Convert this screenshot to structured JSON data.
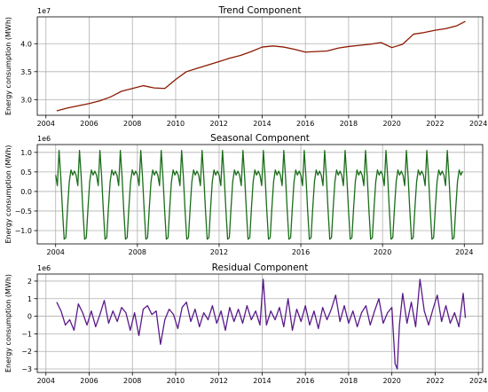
{
  "chart_data": [
    {
      "type": "line",
      "title": "Trend Component",
      "ylabel": "Energy consumption (MWh)",
      "multiplier": "1e7",
      "color": "#8b1a00",
      "xlim": [
        2003.6,
        2024.2
      ],
      "ylim": [
        2.72,
        4.48
      ],
      "xticks": [
        2004,
        2006,
        2008,
        2010,
        2012,
        2014,
        2016,
        2018,
        2020,
        2022,
        2024
      ],
      "xtick_labels": [
        "2004",
        "2006",
        "2008",
        "2010",
        "2012",
        "2014",
        "2016",
        "2018",
        "2020",
        "2022",
        "2024"
      ],
      "yticks": [
        3.0,
        3.5,
        4.0
      ],
      "ytick_labels": [
        "3.0",
        "3.5",
        "4.0"
      ],
      "grid": true,
      "series": [
        {
          "x": [
            2004.5,
            2005.0,
            2005.5,
            2006.0,
            2006.5,
            2007.0,
            2007.5,
            2008.0,
            2008.5,
            2009.0,
            2009.5,
            2010.0,
            2010.5,
            2011.0,
            2011.5,
            2012.0,
            2012.5,
            2013.0,
            2013.5,
            2014.0,
            2014.5,
            2015.0,
            2015.5,
            2016.0,
            2016.5,
            2017.0,
            2017.5,
            2018.0,
            2018.5,
            2019.0,
            2019.5,
            2020.0,
            2020.5,
            2021.0,
            2021.5,
            2022.0,
            2022.5,
            2023.0,
            2023.4
          ],
          "y": [
            2.8,
            2.85,
            2.89,
            2.93,
            2.98,
            3.05,
            3.15,
            3.2,
            3.25,
            3.21,
            3.2,
            3.36,
            3.5,
            3.56,
            3.62,
            3.68,
            3.74,
            3.79,
            3.86,
            3.94,
            3.96,
            3.94,
            3.9,
            3.85,
            3.86,
            3.87,
            3.92,
            3.95,
            3.97,
            3.99,
            4.02,
            3.93,
            3.99,
            4.17,
            4.2,
            4.24,
            4.27,
            4.32,
            4.4
          ]
        }
      ]
    },
    {
      "type": "line",
      "title": "Seasonal Component",
      "ylabel": "Energy consumption (MWh)",
      "multiplier": "1e6",
      "color": "#1a6e1a",
      "xlim": [
        2003.1,
        2024.9
      ],
      "ylim": [
        -1.34,
        1.2
      ],
      "xticks": [
        2004,
        2008,
        2012,
        2016,
        2020,
        2024
      ],
      "xtick_labels": [
        "2004",
        "2008",
        "2012",
        "2016",
        "2020",
        "2024"
      ],
      "yticks": [
        -1.0,
        -0.5,
        0.0,
        0.5,
        1.0
      ],
      "ytick_labels": [
        "−1.0",
        "−0.5",
        "0.0",
        "0.5",
        "1.0"
      ],
      "grid": true,
      "start_year": 2004,
      "years": 20,
      "monthly_pattern": [
        0.42,
        0.15,
        1.05,
        0.38,
        -0.48,
        -1.22,
        -1.18,
        -0.42,
        0.25,
        0.55,
        0.42,
        0.52
      ],
      "series": []
    },
    {
      "type": "line",
      "title": "Residual Component",
      "ylabel": "Energy consumption (MWh)",
      "multiplier": "1e6",
      "color": "#5a1a8a",
      "xlim": [
        2003.6,
        2024.2
      ],
      "ylim": [
        -3.2,
        2.4
      ],
      "xticks": [
        2004,
        2006,
        2008,
        2010,
        2012,
        2014,
        2016,
        2018,
        2020,
        2022,
        2024
      ],
      "xtick_labels": [
        "2004",
        "2006",
        "2008",
        "2010",
        "2012",
        "2014",
        "2016",
        "2018",
        "2020",
        "2022",
        "2024"
      ],
      "yticks": [
        -3,
        -2,
        -1,
        0,
        1,
        2
      ],
      "ytick_labels": [
        "−3",
        "−2",
        "−1",
        "0",
        "1",
        "2"
      ],
      "grid": true,
      "series": [
        {
          "x": [
            2004.5,
            2004.7,
            2004.9,
            2005.1,
            2005.3,
            2005.5,
            2005.7,
            2005.9,
            2006.1,
            2006.3,
            2006.5,
            2006.7,
            2006.9,
            2007.1,
            2007.3,
            2007.5,
            2007.7,
            2007.9,
            2008.1,
            2008.3,
            2008.5,
            2008.7,
            2008.9,
            2009.1,
            2009.3,
            2009.5,
            2009.7,
            2009.9,
            2010.1,
            2010.3,
            2010.5,
            2010.7,
            2010.9,
            2011.1,
            2011.3,
            2011.5,
            2011.7,
            2011.9,
            2012.1,
            2012.3,
            2012.5,
            2012.7,
            2012.9,
            2013.1,
            2013.3,
            2013.5,
            2013.7,
            2013.9,
            2014.05,
            2014.2,
            2014.4,
            2014.6,
            2014.8,
            2015.0,
            2015.2,
            2015.4,
            2015.6,
            2015.8,
            2016.0,
            2016.2,
            2016.4,
            2016.6,
            2016.8,
            2017.0,
            2017.2,
            2017.4,
            2017.6,
            2017.8,
            2018.0,
            2018.2,
            2018.4,
            2018.6,
            2018.8,
            2019.0,
            2019.2,
            2019.4,
            2019.6,
            2019.8,
            2020.0,
            2020.15,
            2020.25,
            2020.35,
            2020.5,
            2020.7,
            2020.9,
            2021.1,
            2021.3,
            2021.5,
            2021.7,
            2021.9,
            2022.1,
            2022.3,
            2022.5,
            2022.7,
            2022.9,
            2023.1,
            2023.3,
            2023.4
          ],
          "y": [
            0.8,
            0.3,
            -0.5,
            -0.2,
            -0.8,
            0.7,
            0.2,
            -0.5,
            0.3,
            -0.6,
            0.1,
            0.9,
            -0.4,
            0.3,
            -0.3,
            0.5,
            0.2,
            -0.8,
            0.2,
            -1.1,
            0.4,
            0.6,
            0.1,
            0.3,
            -1.6,
            -0.2,
            0.4,
            0.1,
            -0.7,
            0.5,
            0.8,
            -0.3,
            0.4,
            -0.6,
            0.2,
            -0.2,
            0.6,
            -0.4,
            0.3,
            -0.8,
            0.5,
            -0.3,
            0.4,
            -0.4,
            0.6,
            -0.2,
            0.3,
            -0.5,
            2.1,
            -0.5,
            0.3,
            -0.2,
            0.5,
            -0.6,
            1.0,
            -0.8,
            0.4,
            -0.3,
            0.6,
            -0.5,
            0.3,
            -0.7,
            0.5,
            -0.2,
            0.4,
            1.2,
            -0.3,
            0.6,
            -0.4,
            0.3,
            -0.6,
            0.2,
            0.6,
            -0.5,
            0.3,
            1.0,
            -0.4,
            0.2,
            0.5,
            -2.7,
            -3.0,
            -0.5,
            1.3,
            -0.4,
            0.8,
            -0.6,
            2.1,
            0.3,
            -0.5,
            0.4,
            1.2,
            -0.3,
            0.6,
            -0.4,
            0.2,
            -0.6,
            1.3,
            -0.1
          ]
        }
      ]
    }
  ]
}
